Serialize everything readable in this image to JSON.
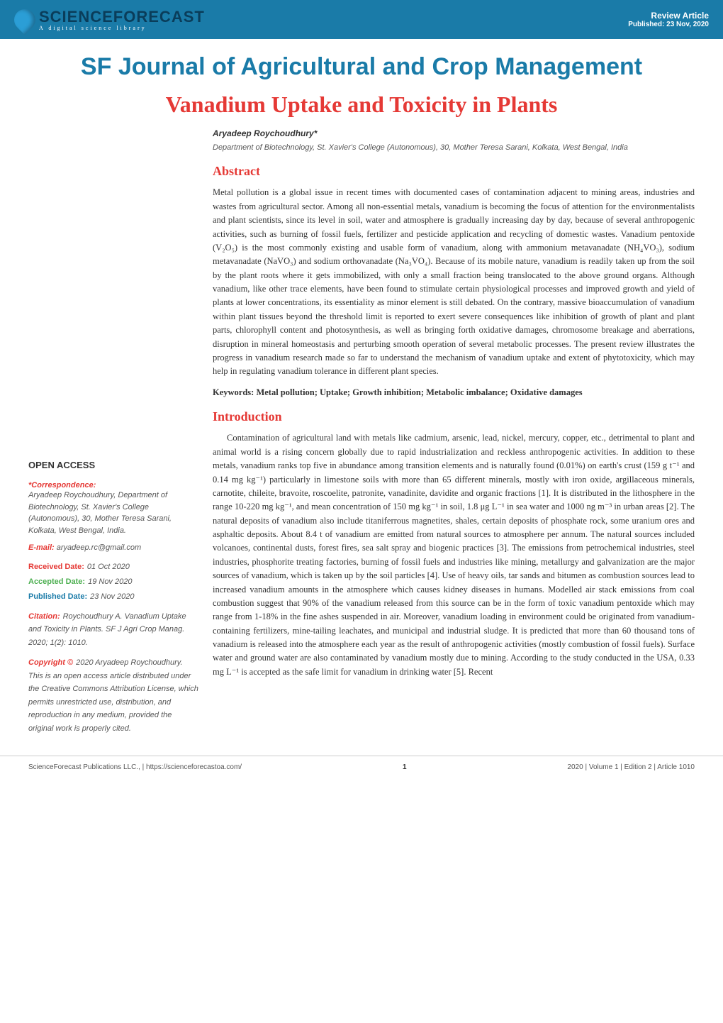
{
  "header": {
    "logo_main": "SCIENCEF",
    "logo_accent": "O",
    "logo_suffix": "RECAST",
    "logo_subtitle": "A digital science library",
    "article_type": "Review Article",
    "published": "Published: 23 Nov, 2020"
  },
  "journal_title": "SF Journal of Agricultural and Crop Management",
  "article_title": "Vanadium Uptake and Toxicity in Plants",
  "author": {
    "name": "Aryadeep Roychoudhury*",
    "affiliation": "Department of Biotechnology, St. Xavier's College (Autonomous), 30, Mother Teresa Sarani, Kolkata, West Bengal, India"
  },
  "abstract": {
    "heading": "Abstract",
    "text": "Metal pollution is a global issue in recent times with documented cases of contamination adjacent to mining areas, industries and wastes from agricultural sector. Among all non-essential metals, vanadium is becoming the focus of attention for the environmentalists and plant scientists, since its level in soil, water and atmosphere is gradually increasing day by day, because of several anthropogenic activities, such as burning of fossil fuels, fertilizer and pesticide application and recycling of domestic wastes. Vanadium pentoxide (V₂O₅) is the most commonly existing and usable form of vanadium, along with ammonium metavanadate (NH₄VO₃), sodium metavanadate (NaVO₃) and sodium orthovanadate (Na₃VO₄). Because of its mobile nature, vanadium is readily taken up from the soil by the plant roots where it gets immobilized, with only a small fraction being translocated to the above ground organs. Although vanadium, like other trace elements, have been found to stimulate certain physiological processes and improved growth and yield of plants at lower concentrations, its essentiality as minor element is still debated. On the contrary, massive bioaccumulation of vanadium within plant tissues beyond the threshold limit is reported to exert severe consequences like inhibition of growth of plant and plant parts, chlorophyll content and photosynthesis, as well as bringing forth oxidative damages, chromosome breakage and aberrations, disruption in mineral homeostasis and perturbing smooth operation of several metabolic processes. The present review illustrates the progress in vanadium research made so far to understand the mechanism of vanadium uptake and extent of phytotoxicity, which may help in regulating vanadium tolerance in different plant species."
  },
  "keywords": "Keywords: Metal pollution; Uptake; Growth inhibition; Metabolic imbalance; Oxidative damages",
  "introduction": {
    "heading": "Introduction",
    "text": "Contamination of agricultural land with metals like cadmium, arsenic, lead, nickel, mercury, copper, etc., detrimental to plant and animal world is a rising concern globally due to rapid industrialization and reckless anthropogenic activities. In addition to these metals, vanadium ranks top five in abundance among transition elements and is naturally found (0.01%) on earth's crust (159 g t⁻¹ and 0.14 mg kg⁻¹) particularly in limestone soils with more than 65 different minerals, mostly with iron oxide, argillaceous minerals, carnotite, chileite, bravoite, roscoelite, patronite, vanadinite, davidite and organic fractions [1]. It is distributed in the lithosphere in the range 10-220 mg kg⁻¹, and mean concentration of 150 mg kg⁻¹ in soil, 1.8 μg L⁻¹ in sea water and 1000 ng m⁻³ in urban areas [2]. The natural deposits of vanadium also include titaniferrous magnetites, shales, certain deposits of phosphate rock, some uranium ores and asphaltic deposits. About 8.4 t of vanadium are emitted from natural sources to atmosphere per annum. The natural sources included volcanoes, continental dusts, forest fires, sea salt spray and biogenic practices [3]. The emissions from petrochemical industries, steel industries, phosphorite treating factories, burning of fossil fuels and industries like mining, metallurgy and galvanization are the major sources of vanadium, which is taken up by the soil particles [4]. Use of heavy oils, tar sands and bitumen as combustion sources lead to increased vanadium amounts in the atmosphere which causes kidney diseases in humans. Modelled air stack emissions from coal combustion suggest that 90% of the vanadium released from this source can be in the form of toxic vanadium pentoxide which may range from 1-18% in the fine ashes suspended in air. Moreover, vanadium loading in environment could be originated from vanadium-containing fertilizers, mine-tailing leachates, and municipal and industrial sludge. It is predicted that more than 60 thousand tons of vanadium is released into the atmosphere each year as the result of anthropogenic activities (mostly combustion of fossil fuels). Surface water and ground water are also contaminated by vanadium mostly due to mining. According to the study conducted in the USA, 0.33 mg L⁻¹ is accepted as the safe limit for vanadium in drinking water [5]. Recent"
  },
  "sidebar": {
    "open_access": "OPEN ACCESS",
    "correspondence_label": "*Correspondence:",
    "correspondence_text": "Aryadeep Roychoudhury, Department of Biotechnology, St. Xavier's College (Autonomous), 30, Mother Teresa Sarani, Kolkata, West Bengal, India.",
    "email_label": "E-mail:",
    "email": "aryadeep.rc@gmail.com",
    "received_label": "Received Date:",
    "received_date": "01 Oct 2020",
    "accepted_label": "Accepted Date:",
    "accepted_date": "19 Nov 2020",
    "published_label": "Published Date:",
    "published_date": "23 Nov 2020",
    "citation_label": "Citation:",
    "citation_text": "Roychoudhury A. Vanadium Uptake and Toxicity in Plants. SF J Agri Crop Manag. 2020; 1(2): 1010.",
    "copyright_label": "Copyright ©",
    "copyright_text": "2020 Aryadeep Roychoudhury. This is an open access article distributed under the Creative Commons Attribution License, which permits unrestricted use, distribution, and reproduction in any medium, provided the original work is properly cited."
  },
  "footer": {
    "left": "ScienceForecast Publications LLC., | https://scienceforecastoa.com/",
    "page": "1",
    "right": "2020 | Volume 1 | Edition 2 | Article 1010"
  },
  "colors": {
    "header_bg": "#1a7ba8",
    "red": "#e53935",
    "green": "#4caf50",
    "blue": "#1a7ba8",
    "orange": "#f7941d",
    "text_dark": "#333333",
    "text_light": "#555555"
  }
}
